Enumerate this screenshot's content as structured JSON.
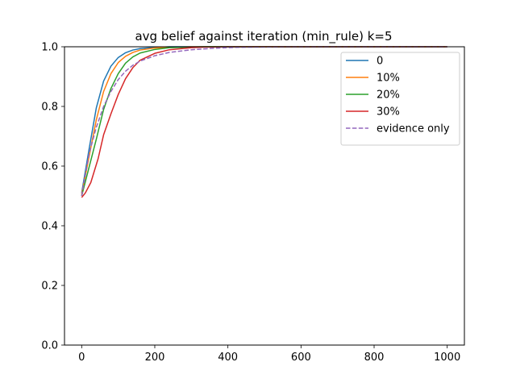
{
  "chart_data": {
    "type": "line",
    "title": "avg belief against iteration (min_rule) k=5",
    "xlabel": "",
    "ylabel": "",
    "xlim": [
      -47,
      1047
    ],
    "ylim": [
      0.0,
      1.0
    ],
    "xticks": [
      0,
      200,
      400,
      600,
      800,
      1000
    ],
    "xtick_labels": [
      "0",
      "200",
      "400",
      "600",
      "800",
      "1000"
    ],
    "yticks": [
      0.0,
      0.2,
      0.4,
      0.6,
      0.8,
      1.0
    ],
    "ytick_labels": [
      "0.0",
      "0.2",
      "0.4",
      "0.6",
      "0.8",
      "1.0"
    ],
    "grid": false,
    "legend_position": "top-right",
    "series": [
      {
        "name": "0",
        "color": "#1f77b4",
        "style": "solid",
        "points": [
          [
            0,
            0.51
          ],
          [
            20,
            0.655
          ],
          [
            40,
            0.795
          ],
          [
            60,
            0.885
          ],
          [
            80,
            0.935
          ],
          [
            100,
            0.964
          ],
          [
            120,
            0.98
          ],
          [
            140,
            0.989
          ],
          [
            160,
            0.994
          ],
          [
            200,
            0.998
          ],
          [
            240,
            1.0
          ],
          [
            1000,
            1.0
          ]
        ]
      },
      {
        "name": "10%",
        "color": "#ff7f0e",
        "style": "solid",
        "points": [
          [
            0,
            0.505
          ],
          [
            20,
            0.63
          ],
          [
            40,
            0.755
          ],
          [
            60,
            0.85
          ],
          [
            80,
            0.91
          ],
          [
            100,
            0.947
          ],
          [
            120,
            0.968
          ],
          [
            140,
            0.981
          ],
          [
            160,
            0.989
          ],
          [
            200,
            0.996
          ],
          [
            260,
            0.999
          ],
          [
            300,
            1.0
          ],
          [
            1000,
            1.0
          ]
        ]
      },
      {
        "name": "20%",
        "color": "#2ca02c",
        "style": "solid",
        "points": [
          [
            0,
            0.5
          ],
          [
            20,
            0.595
          ],
          [
            40,
            0.69
          ],
          [
            60,
            0.79
          ],
          [
            80,
            0.86
          ],
          [
            100,
            0.91
          ],
          [
            120,
            0.945
          ],
          [
            140,
            0.966
          ],
          [
            160,
            0.979
          ],
          [
            200,
            0.991
          ],
          [
            240,
            0.997
          ],
          [
            300,
            0.999
          ],
          [
            340,
            1.0
          ],
          [
            1000,
            1.0
          ]
        ]
      },
      {
        "name": "30%",
        "color": "#d62728",
        "style": "solid",
        "points": [
          [
            0,
            0.495
          ],
          [
            10,
            0.51
          ],
          [
            25,
            0.545
          ],
          [
            45,
            0.625
          ],
          [
            60,
            0.705
          ],
          [
            80,
            0.775
          ],
          [
            100,
            0.84
          ],
          [
            120,
            0.893
          ],
          [
            140,
            0.93
          ],
          [
            160,
            0.955
          ],
          [
            200,
            0.978
          ],
          [
            240,
            0.99
          ],
          [
            300,
            0.997
          ],
          [
            340,
            0.999
          ],
          [
            400,
            1.0
          ],
          [
            1000,
            1.0
          ]
        ]
      },
      {
        "name": "evidence only",
        "color": "#9467bd",
        "style": "dashed",
        "points": [
          [
            0,
            0.5
          ],
          [
            20,
            0.64
          ],
          [
            40,
            0.73
          ],
          [
            60,
            0.8
          ],
          [
            80,
            0.85
          ],
          [
            100,
            0.89
          ],
          [
            120,
            0.918
          ],
          [
            140,
            0.938
          ],
          [
            160,
            0.952
          ],
          [
            200,
            0.97
          ],
          [
            240,
            0.981
          ],
          [
            300,
            0.99
          ],
          [
            360,
            0.995
          ],
          [
            420,
            0.998
          ],
          [
            480,
            0.999
          ],
          [
            560,
            1.0
          ],
          [
            1000,
            1.0
          ]
        ]
      }
    ]
  }
}
